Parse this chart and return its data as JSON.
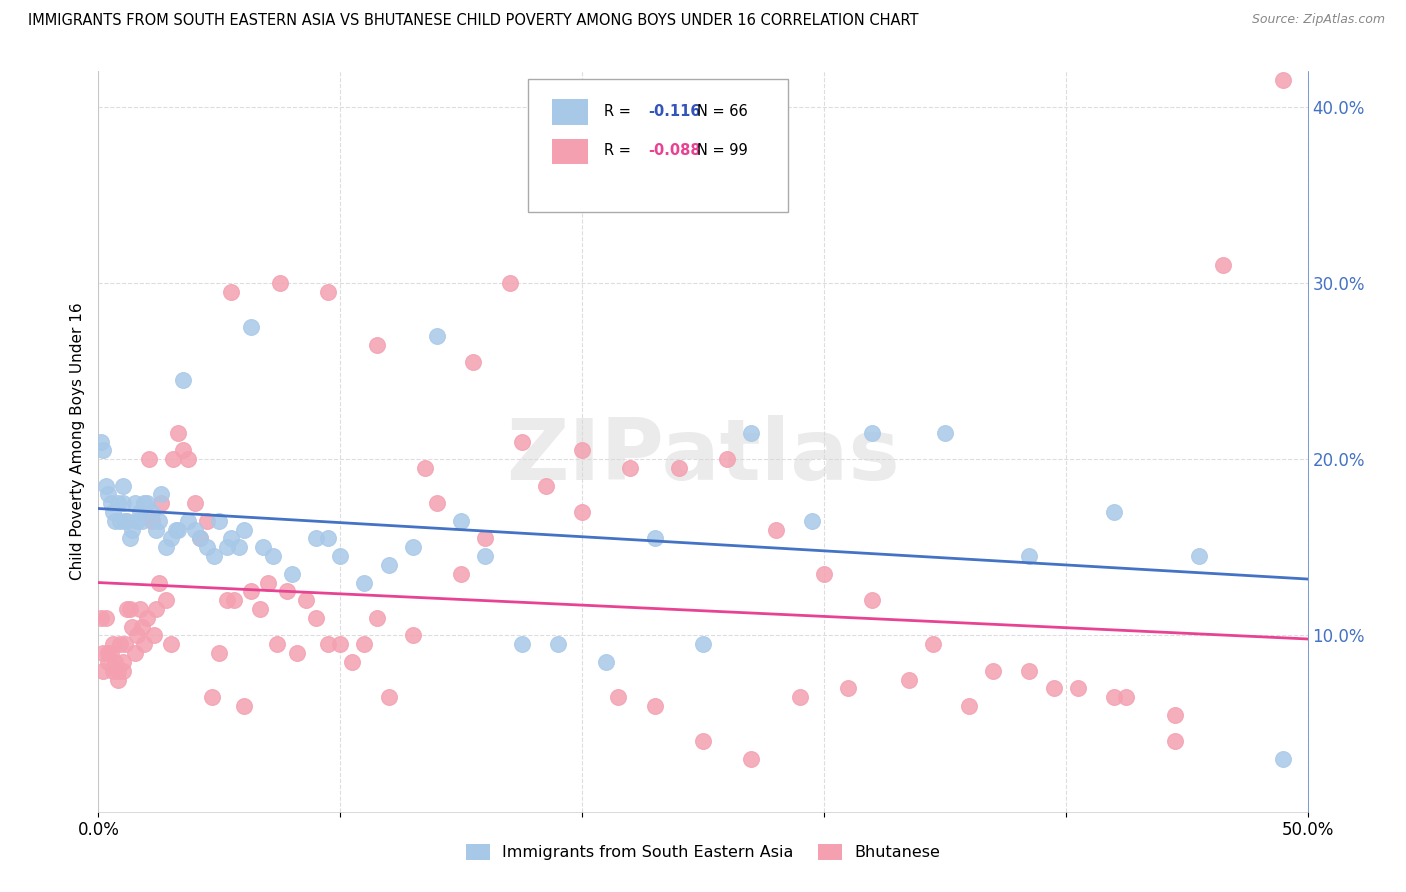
{
  "title": "IMMIGRANTS FROM SOUTH EASTERN ASIA VS BHUTANESE CHILD POVERTY AMONG BOYS UNDER 16 CORRELATION CHART",
  "source": "Source: ZipAtlas.com",
  "ylabel": "Child Poverty Among Boys Under 16",
  "xlim": [
    0,
    0.5
  ],
  "ylim": [
    0,
    0.42
  ],
  "yticks_right": [
    0.1,
    0.2,
    0.3,
    0.4
  ],
  "ytick_labels_right": [
    "10.0%",
    "20.0%",
    "30.0%",
    "40.0%"
  ],
  "xtick_edge_left": "0.0%",
  "xtick_edge_right": "50.0%",
  "legend_r_blue": "-0.116",
  "legend_n_blue": "66",
  "legend_r_pink": "-0.088",
  "legend_n_pink": "99",
  "blue_color": "#a8c8e8",
  "pink_color": "#f4a0b0",
  "trend_blue": "#4472c4",
  "trend_pink": "#e84393",
  "watermark_text": "ZIPatlas",
  "blue_trend_start": 0.172,
  "blue_trend_end": 0.132,
  "pink_trend_start": 0.13,
  "pink_trend_end": 0.098,
  "blue_scatter_x": [
    0.001,
    0.002,
    0.003,
    0.004,
    0.005,
    0.006,
    0.007,
    0.008,
    0.009,
    0.01,
    0.01,
    0.011,
    0.012,
    0.013,
    0.014,
    0.015,
    0.016,
    0.017,
    0.018,
    0.019,
    0.02,
    0.022,
    0.024,
    0.025,
    0.026,
    0.028,
    0.03,
    0.032,
    0.033,
    0.035,
    0.037,
    0.04,
    0.042,
    0.045,
    0.048,
    0.05,
    0.053,
    0.055,
    0.058,
    0.06,
    0.063,
    0.068,
    0.072,
    0.08,
    0.09,
    0.095,
    0.1,
    0.11,
    0.12,
    0.13,
    0.14,
    0.15,
    0.16,
    0.175,
    0.19,
    0.21,
    0.23,
    0.25,
    0.27,
    0.295,
    0.32,
    0.35,
    0.385,
    0.42,
    0.455,
    0.49
  ],
  "blue_scatter_y": [
    0.21,
    0.205,
    0.185,
    0.18,
    0.175,
    0.17,
    0.165,
    0.175,
    0.165,
    0.175,
    0.185,
    0.165,
    0.165,
    0.155,
    0.16,
    0.175,
    0.165,
    0.17,
    0.165,
    0.175,
    0.175,
    0.17,
    0.16,
    0.165,
    0.18,
    0.15,
    0.155,
    0.16,
    0.16,
    0.245,
    0.165,
    0.16,
    0.155,
    0.15,
    0.145,
    0.165,
    0.15,
    0.155,
    0.15,
    0.16,
    0.275,
    0.15,
    0.145,
    0.135,
    0.155,
    0.155,
    0.145,
    0.13,
    0.14,
    0.15,
    0.27,
    0.165,
    0.145,
    0.095,
    0.095,
    0.085,
    0.155,
    0.095,
    0.215,
    0.165,
    0.215,
    0.215,
    0.145,
    0.17,
    0.145,
    0.03
  ],
  "pink_scatter_x": [
    0.001,
    0.002,
    0.002,
    0.003,
    0.004,
    0.004,
    0.005,
    0.006,
    0.006,
    0.007,
    0.008,
    0.008,
    0.009,
    0.01,
    0.01,
    0.011,
    0.012,
    0.013,
    0.014,
    0.015,
    0.016,
    0.017,
    0.018,
    0.019,
    0.02,
    0.021,
    0.022,
    0.023,
    0.024,
    0.025,
    0.026,
    0.028,
    0.03,
    0.031,
    0.033,
    0.035,
    0.037,
    0.04,
    0.042,
    0.045,
    0.047,
    0.05,
    0.053,
    0.056,
    0.06,
    0.063,
    0.067,
    0.07,
    0.074,
    0.078,
    0.082,
    0.086,
    0.09,
    0.095,
    0.1,
    0.105,
    0.11,
    0.115,
    0.12,
    0.13,
    0.14,
    0.15,
    0.16,
    0.17,
    0.185,
    0.2,
    0.215,
    0.23,
    0.25,
    0.27,
    0.29,
    0.31,
    0.335,
    0.36,
    0.385,
    0.405,
    0.425,
    0.445,
    0.465,
    0.49,
    0.055,
    0.075,
    0.095,
    0.115,
    0.135,
    0.155,
    0.175,
    0.2,
    0.22,
    0.24,
    0.26,
    0.28,
    0.3,
    0.32,
    0.345,
    0.37,
    0.395,
    0.42,
    0.445
  ],
  "pink_scatter_y": [
    0.11,
    0.09,
    0.08,
    0.11,
    0.09,
    0.085,
    0.09,
    0.08,
    0.095,
    0.085,
    0.08,
    0.075,
    0.095,
    0.085,
    0.08,
    0.095,
    0.115,
    0.115,
    0.105,
    0.09,
    0.1,
    0.115,
    0.105,
    0.095,
    0.11,
    0.2,
    0.165,
    0.1,
    0.115,
    0.13,
    0.175,
    0.12,
    0.095,
    0.2,
    0.215,
    0.205,
    0.2,
    0.175,
    0.155,
    0.165,
    0.065,
    0.09,
    0.12,
    0.12,
    0.06,
    0.125,
    0.115,
    0.13,
    0.095,
    0.125,
    0.09,
    0.12,
    0.11,
    0.095,
    0.095,
    0.085,
    0.095,
    0.11,
    0.065,
    0.1,
    0.175,
    0.135,
    0.155,
    0.3,
    0.185,
    0.17,
    0.065,
    0.06,
    0.04,
    0.03,
    0.065,
    0.07,
    0.075,
    0.06,
    0.08,
    0.07,
    0.065,
    0.04,
    0.31,
    0.415,
    0.295,
    0.3,
    0.295,
    0.265,
    0.195,
    0.255,
    0.21,
    0.205,
    0.195,
    0.195,
    0.2,
    0.16,
    0.135,
    0.12,
    0.095,
    0.08,
    0.07,
    0.065,
    0.055
  ]
}
